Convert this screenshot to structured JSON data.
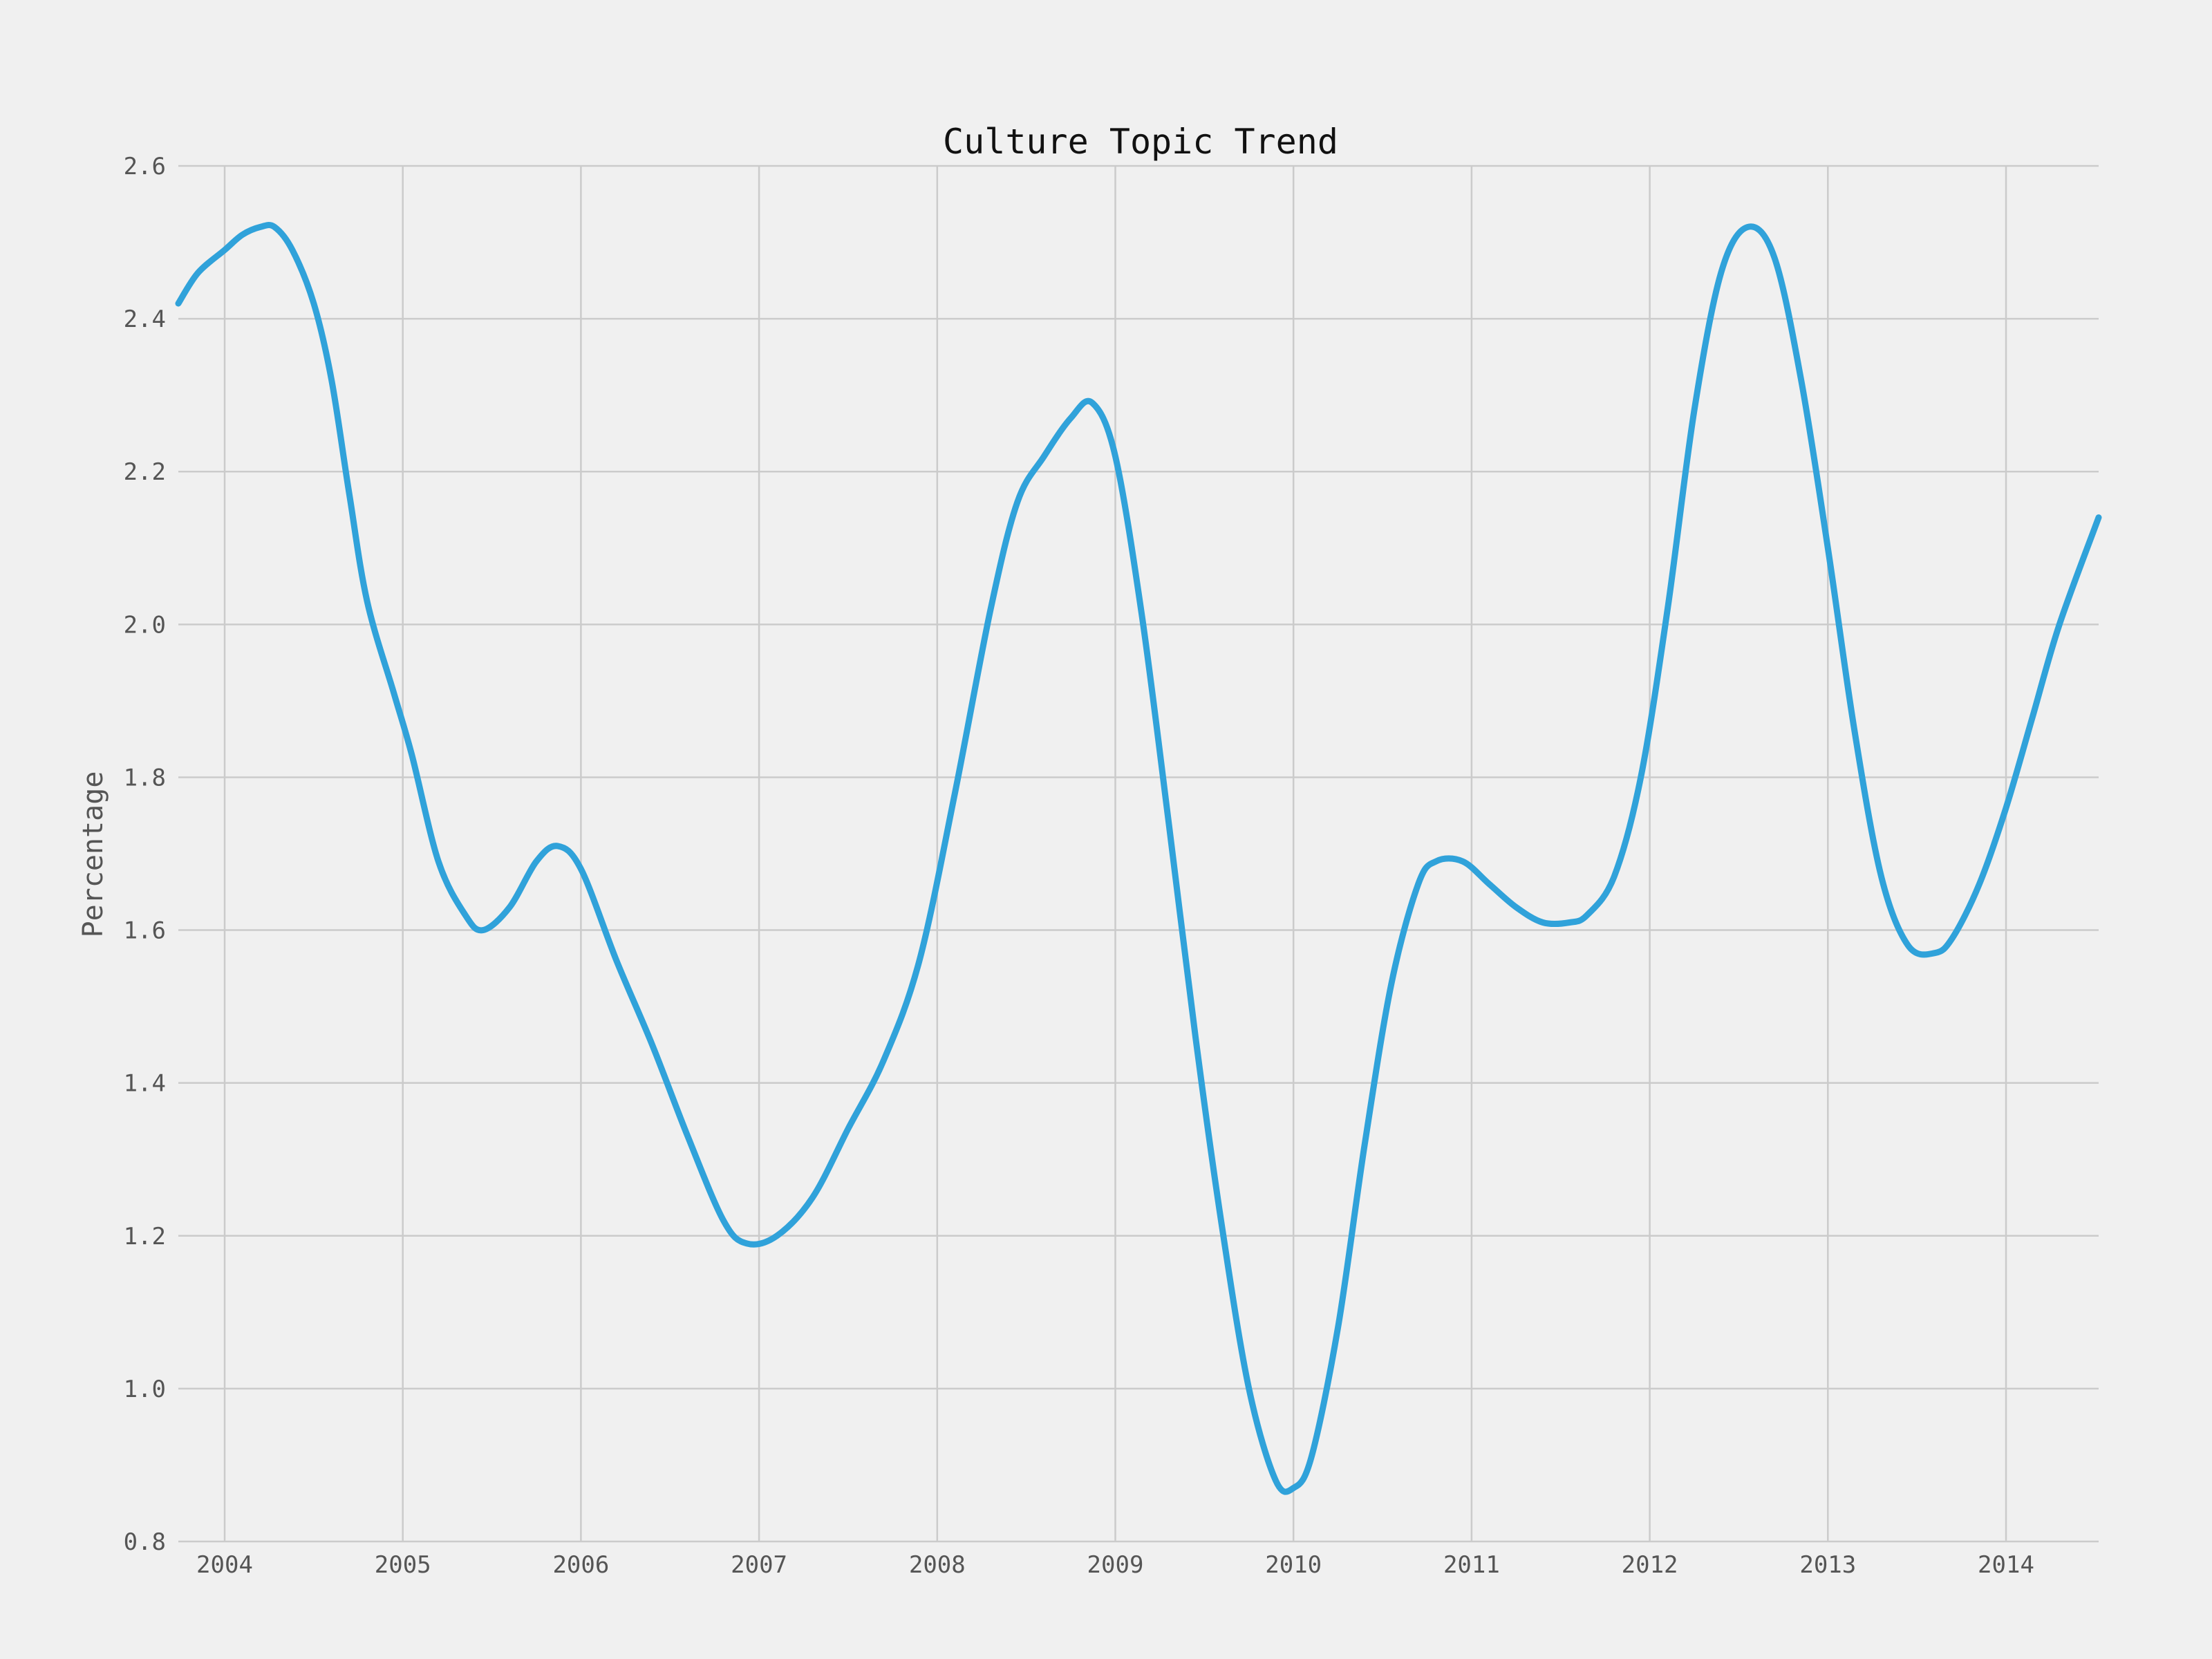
{
  "chart_data": {
    "type": "line",
    "title": "Culture Topic Trend",
    "xlabel": "",
    "ylabel": "Percentage",
    "xlim": [
      2003.74,
      2014.52
    ],
    "ylim": [
      0.8,
      2.6
    ],
    "x_ticks": [
      "2004",
      "2005",
      "2006",
      "2007",
      "2008",
      "2009",
      "2010",
      "2011",
      "2012",
      "2013",
      "2014"
    ],
    "y_ticks": [
      "0.8",
      "1.0",
      "1.2",
      "1.4",
      "1.6",
      "1.8",
      "2.0",
      "2.2",
      "2.4",
      "2.6"
    ],
    "grid": true,
    "colors": {
      "line": "#30a2da",
      "background": "#f0f0f0",
      "grid": "#cbcbcb"
    },
    "series": [
      {
        "x": [
          2003.74,
          2003.85,
          2004.0,
          2004.1,
          2004.2,
          2004.28,
          2004.38,
          2004.5,
          2004.6,
          2004.7,
          2004.8,
          2004.95,
          2005.05,
          2005.2,
          2005.35,
          2005.45,
          2005.6,
          2005.75,
          2005.87,
          2006.0,
          2006.2,
          2006.4,
          2006.6,
          2006.8,
          2006.93,
          2007.1,
          2007.3,
          2007.5,
          2007.7,
          2007.9,
          2008.1,
          2008.3,
          2008.45,
          2008.6,
          2008.75,
          2008.87,
          2009.0,
          2009.15,
          2009.3,
          2009.45,
          2009.6,
          2009.75,
          2009.9,
          2010.0,
          2010.1,
          2010.25,
          2010.4,
          2010.55,
          2010.7,
          2010.8,
          2010.95,
          2011.1,
          2011.25,
          2011.4,
          2011.55,
          2011.65,
          2011.8,
          2011.95,
          2012.1,
          2012.25,
          2012.4,
          2012.55,
          2012.7,
          2012.85,
          2013.0,
          2013.15,
          2013.3,
          2013.45,
          2013.6,
          2013.7,
          2013.85,
          2014.0,
          2014.15,
          2014.3,
          2014.52
        ],
        "values": [
          2.42,
          2.46,
          2.49,
          2.51,
          2.52,
          2.52,
          2.49,
          2.42,
          2.32,
          2.17,
          2.03,
          1.91,
          1.83,
          1.69,
          1.62,
          1.6,
          1.63,
          1.69,
          1.71,
          1.68,
          1.56,
          1.45,
          1.33,
          1.22,
          1.19,
          1.2,
          1.25,
          1.34,
          1.43,
          1.56,
          1.78,
          2.02,
          2.16,
          2.22,
          2.27,
          2.29,
          2.22,
          2.01,
          1.74,
          1.46,
          1.21,
          1.0,
          0.88,
          0.87,
          0.91,
          1.08,
          1.32,
          1.53,
          1.66,
          1.69,
          1.69,
          1.66,
          1.63,
          1.61,
          1.61,
          1.62,
          1.67,
          1.8,
          2.02,
          2.28,
          2.46,
          2.52,
          2.48,
          2.32,
          2.1,
          1.86,
          1.67,
          1.58,
          1.57,
          1.59,
          1.66,
          1.76,
          1.88,
          2.0,
          2.14
        ]
      }
    ]
  }
}
